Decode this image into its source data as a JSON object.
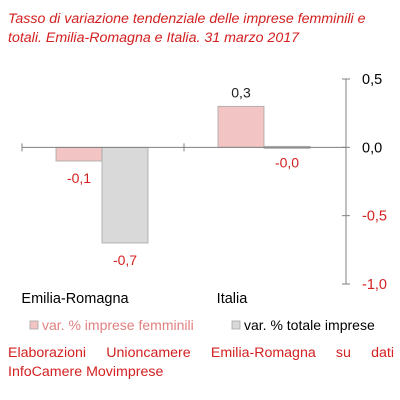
{
  "chart_data": {
    "type": "bar",
    "title": "Tasso di variazione tendenziale delle imprese femminili e totali. Emilia-Romagna e Italia. 31 marzo 2017",
    "categories": [
      "Emilia-Romagna",
      "Italia"
    ],
    "series": [
      {
        "name": "var. % imprese femminili",
        "values": [
          -0.1,
          0.3
        ],
        "labels": [
          "-0,1",
          "0,3"
        ],
        "color": "#f2c4c4"
      },
      {
        "name": "var. % totale imprese",
        "values": [
          -0.7,
          -0.0
        ],
        "labels": [
          "-0,7",
          "-0,0"
        ],
        "color": "#d9d9d9"
      }
    ],
    "ylim": [
      -1.0,
      0.5
    ],
    "yticks": [
      0.5,
      0.0,
      -0.5,
      -1.0
    ],
    "ytick_labels": [
      "0,5",
      "0,0",
      "-0,5",
      "-1,0"
    ],
    "y_axis_position": "right",
    "legend_position": "bottom",
    "grid": false,
    "colors": {
      "text": "#d42020",
      "axis": "#808080",
      "bar_border": "#a6a6a6"
    }
  },
  "source_note": "Elaborazioni Unioncamere Emilia-Romagna su dati InfoCamere Movimprese"
}
